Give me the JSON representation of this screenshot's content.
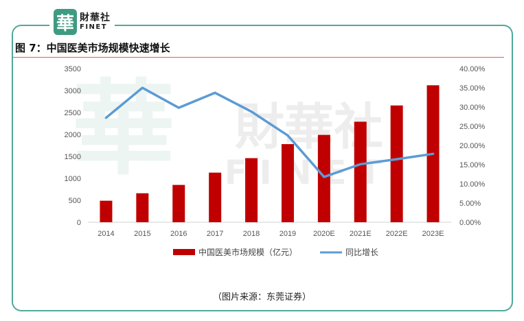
{
  "logo": {
    "mark": "華",
    "cn": "財華社",
    "en": "FINET"
  },
  "figure_title": "图 7：中国医美市场规模快速增长",
  "source": "（图片来源：东莞证券）",
  "colors": {
    "bar": "#c00000",
    "line": "#5b9bd5",
    "frame": "#4fa89a",
    "rule": "#e05a5a"
  },
  "chart_data": {
    "type": "bar",
    "categories": [
      "2014",
      "2015",
      "2016",
      "2017",
      "2018",
      "2019",
      "2020E",
      "2021E",
      "2022E",
      "2023E"
    ],
    "series": [
      {
        "name": "中国医美市场规模（亿元）",
        "type": "bar",
        "axis": "left",
        "values": [
          490,
          660,
          850,
          1130,
          1460,
          1780,
          1990,
          2290,
          2660,
          3120
        ]
      },
      {
        "name": "同比增长",
        "type": "line",
        "axis": "right",
        "values": [
          0.272,
          0.35,
          0.298,
          0.337,
          0.288,
          0.226,
          0.118,
          0.151,
          0.164,
          0.178
        ]
      }
    ],
    "y_left": {
      "min": 0,
      "max": 3500,
      "ticks": [
        "0",
        "500",
        "1000",
        "1500",
        "2000",
        "2500",
        "3000",
        "3500"
      ]
    },
    "y_right": {
      "min": 0,
      "max": 0.4,
      "ticks": [
        "0.00%",
        "5.00%",
        "10.00%",
        "15.00%",
        "20.00%",
        "25.00%",
        "30.00%",
        "35.00%",
        "40.00%"
      ]
    },
    "legend_position": "bottom",
    "grid": false
  }
}
